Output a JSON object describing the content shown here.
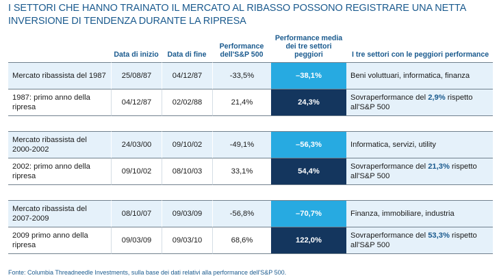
{
  "title": "I settori che hanno trainato il mercato al ribasso possono registrare una netta inversione di tendenza durante la ripresa",
  "headers": {
    "label": "",
    "start": "Data di inizio",
    "end": "Data di fine",
    "sp500": "Performance dell'S&P 500",
    "worst3_perf": "Performance media dei tre settori peggiori",
    "worst3_sectors": "I tre settori con le peggiori performance"
  },
  "groups": [
    {
      "bear": {
        "label": "Mercato ribassista del 1987",
        "start": "25/08/87",
        "end": "04/12/87",
        "sp500": "-33,5%",
        "worst3_perf": "–38,1%",
        "sectors": "Beni voluttuari, informatica, finanza"
      },
      "recovery": {
        "label": "1987: primo anno della ripresa",
        "start": "04/12/87",
        "end": "02/02/88",
        "sp500": "21,4%",
        "worst3_perf": "24,3%",
        "outperf_prefix": "Sovraperformance del ",
        "outperf_value": "2,9%",
        "outperf_suffix": " rispetto all'S&P 500"
      }
    },
    {
      "bear": {
        "label": "Mercato ribassista del 2000-2002",
        "start": "24/03/00",
        "end": "09/10/02",
        "sp500": "-49,1%",
        "worst3_perf": "–56,3%",
        "sectors": "Informatica, servizi, utility"
      },
      "recovery": {
        "label": "2002: primo anno della ripresa",
        "start": "09/10/02",
        "end": "08/10/03",
        "sp500": "33,1%",
        "worst3_perf": "54,4%",
        "outperf_prefix": "Sovraperformance del ",
        "outperf_value": "21,3%",
        "outperf_suffix": " rispetto all'S&P 500"
      }
    },
    {
      "bear": {
        "label": "Mercato ribassista del 2007-2009",
        "start": "08/10/07",
        "end": "09/03/09",
        "sp500": "-56,8%",
        "worst3_perf": "–70,7%",
        "sectors": "Finanza, immobiliare, industria"
      },
      "recovery": {
        "label": "2009 primo anno della ripresa",
        "start": "09/03/09",
        "end": "09/03/10",
        "sp500": "68,6%",
        "worst3_perf": "122,0%",
        "outperf_prefix": "Sovraperformance del ",
        "outperf_value": "53,3%",
        "outperf_suffix": " rispetto all'S&P 500"
      }
    }
  ],
  "footer": "Fonte: Columbia Threadneedle Investments, sulla base dei dati relativi alla performance dell'S&P 500.",
  "colors": {
    "title": "#1a5a8e",
    "bear_highlight": "#27aae1",
    "recovery_highlight": "#14365e",
    "row_tint": "#e5f1fa"
  }
}
